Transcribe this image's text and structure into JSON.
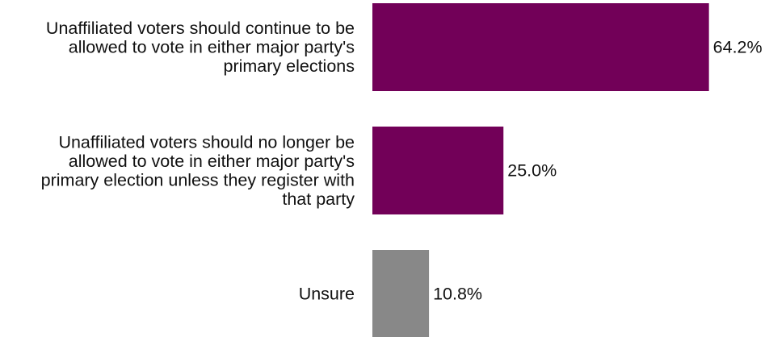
{
  "chart_data": {
    "type": "bar",
    "orientation": "horizontal",
    "categories": [
      "Unaffiliated voters should continue to be allowed to vote in either major party's primary elections",
      "Unaffiliated voters should no longer be allowed to vote in either major party's primary election unless they register with that party",
      "Unsure"
    ],
    "category_lines": [
      [
        "Unaffiliated voters should continue to be",
        "allowed to vote in either major party's",
        "primary elections"
      ],
      [
        "Unaffiliated voters should no longer be",
        "allowed to vote in either major party's",
        "primary election unless they register with",
        "that party"
      ],
      [
        "Unsure"
      ]
    ],
    "values": [
      64.2,
      25.0,
      10.8
    ],
    "value_labels": [
      "64.2%",
      "25.0%",
      "10.8%"
    ],
    "colors": [
      "#720058",
      "#720058",
      "#888888"
    ],
    "xlim": [
      0,
      100
    ],
    "title": "",
    "xlabel": "",
    "ylabel": "",
    "grid": false,
    "legend": "none"
  }
}
